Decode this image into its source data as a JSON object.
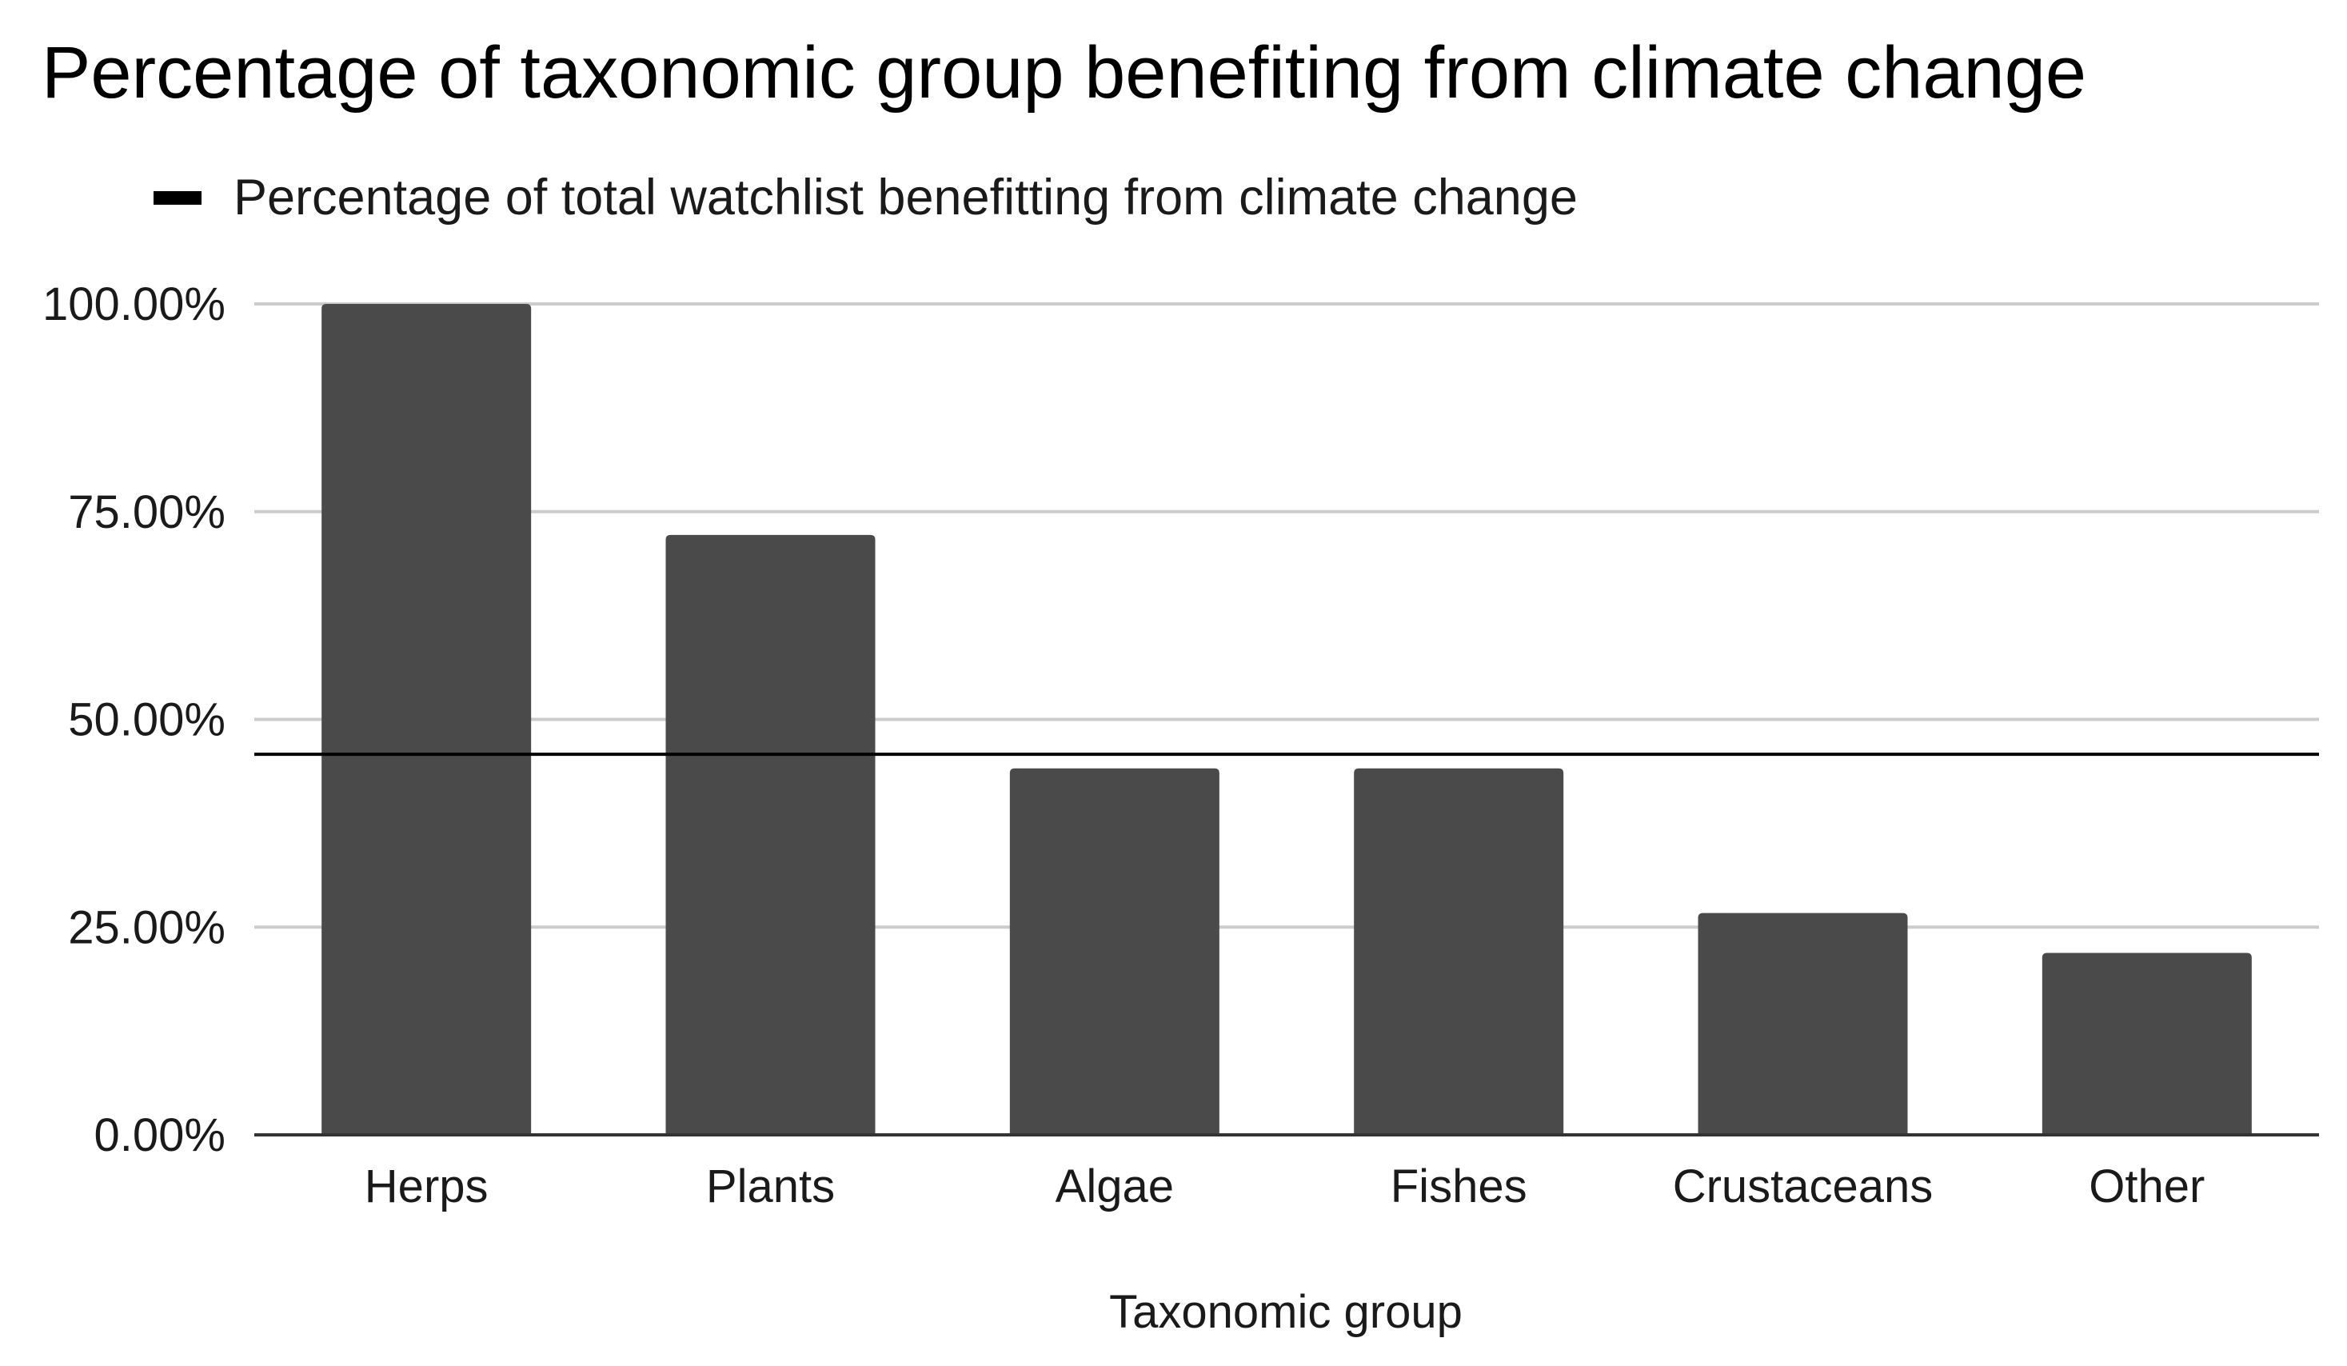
{
  "chart_data": {
    "type": "bar",
    "title": "Percentage of taxonomic group benefiting from climate change",
    "xlabel": "Taxonomic group",
    "ylabel": "",
    "categories": [
      "Herps",
      "Plants",
      "Algae",
      "Fishes",
      "Crustaceans",
      "Other"
    ],
    "series": [
      {
        "name": "Percentage of taxonomic group benefiting from climate change",
        "values": [
          100.0,
          72.2,
          44.1,
          44.1,
          26.7,
          21.9
        ],
        "color": "#4a4a4a"
      }
    ],
    "reference_line": {
      "name": "Percentage of total watchlist benefitting from climate change",
      "value": 45.8,
      "color": "#000000"
    },
    "legend": {
      "position": "top-left",
      "entries": [
        "Percentage of total watchlist benefitting from climate change"
      ]
    },
    "ylim": [
      0,
      100
    ],
    "yticks": [
      0,
      25,
      50,
      75,
      100
    ],
    "ytick_labels": [
      "0.00%",
      "25.00%",
      "50.00%",
      "75.00%",
      "100.00%"
    ],
    "grid": true,
    "colors": {
      "bar": "#4a4a4a",
      "grid": "#cccccc",
      "reference_line": "#000000",
      "axis": "#333333"
    }
  }
}
